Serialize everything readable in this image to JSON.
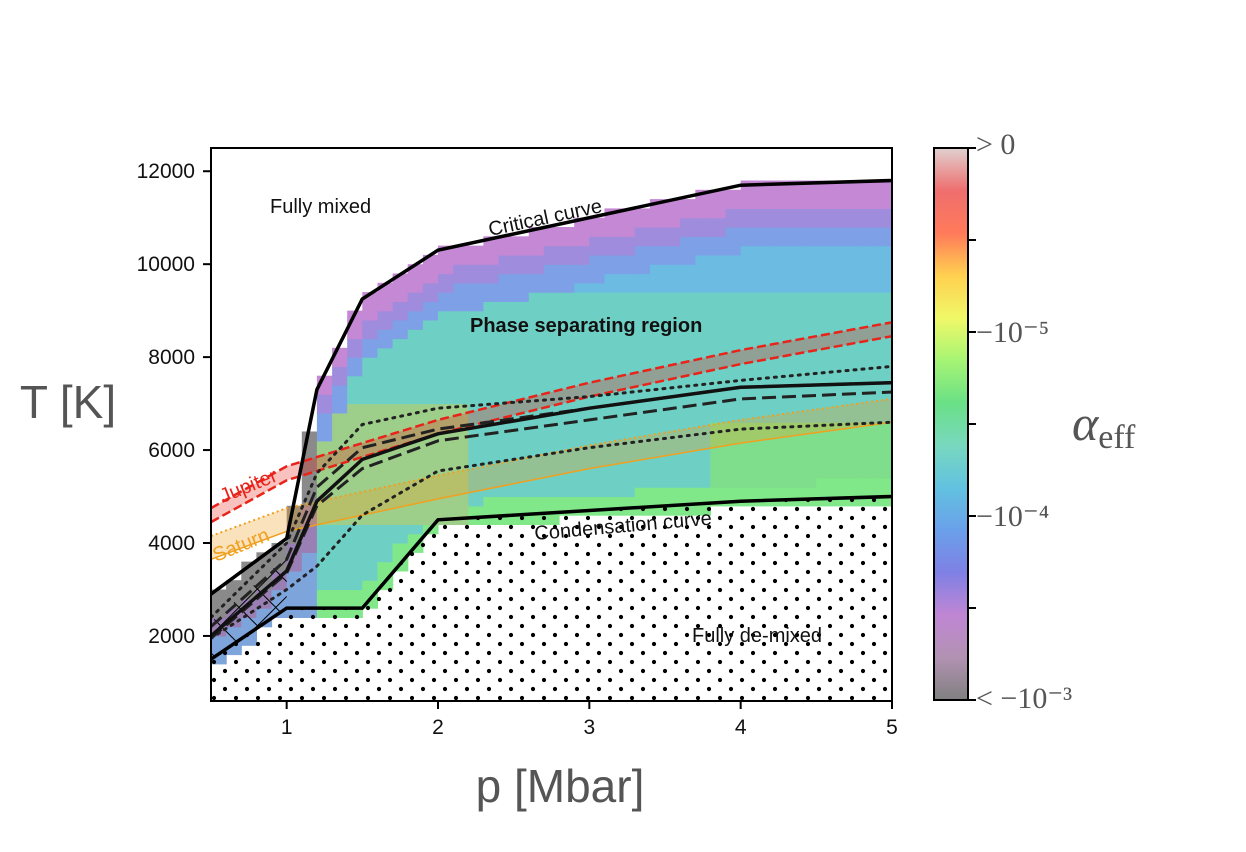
{
  "chart_data": {
    "type": "heatmap",
    "title": "",
    "xlabel": "p [Mbar]",
    "ylabel": "T [K]",
    "xlim": [
      0.5,
      5
    ],
    "ylim": [
      600,
      12500
    ],
    "x_ticks": [
      1,
      2,
      3,
      4,
      5
    ],
    "y_ticks": [
      2000,
      4000,
      6000,
      8000,
      10000,
      12000
    ],
    "colorbar": {
      "label": "α_eff",
      "label_symbol": "α",
      "label_sub": "eff",
      "tick_labels": [
        "> 0",
        "−10⁻⁵",
        "−10⁻⁴",
        "< −10⁻³"
      ],
      "colors": [
        "#e0d0d0",
        "#ef6e6e",
        "#ff7a5a",
        "#ffd050",
        "#f0f868",
        "#a6f474",
        "#6ae086",
        "#78d8be",
        "#62c2e0",
        "#6aa0ea",
        "#7e80e4",
        "#c086d4",
        "#b292b2",
        "#808080"
      ]
    },
    "critical_curve": {
      "name": "Critical curve",
      "x": [
        0.5,
        1.0,
        1.2,
        1.5,
        2.0,
        4.0,
        5.0
      ],
      "y": [
        2900,
        4100,
        7300,
        9250,
        10300,
        11700,
        11800
      ]
    },
    "condensation_curve": {
      "name": "Condensation curve",
      "x": [
        0.5,
        1.0,
        1.5,
        2.0,
        4.0,
        5.0
      ],
      "y": [
        1500,
        2600,
        2600,
        4500,
        4900,
        5000
      ]
    },
    "jupiter_adiabat": {
      "name": "Jupiter",
      "x": [
        0.5,
        1.0,
        2.0,
        3.0,
        4.0,
        5.0
      ],
      "y": [
        4600,
        5500,
        6500,
        7300,
        8000,
        8600
      ]
    },
    "saturn_adiabat": {
      "name": "Saturn",
      "x": [
        0.5,
        1.0,
        1.5,
        2.0,
        3.0,
        4.0,
        5.0
      ],
      "y": [
        3900,
        4500,
        4850,
        5200,
        5850,
        6400,
        6850
      ]
    },
    "black_solid_curve": {
      "x": [
        0.5,
        1.0,
        1.2,
        1.5,
        2.0,
        3.0,
        4.0,
        5.0
      ],
      "y": [
        2000,
        3400,
        4900,
        5800,
        6350,
        6900,
        7350,
        7450
      ]
    },
    "black_dashed_curves": [
      {
        "x": [
          0.5,
          1.0,
          1.2,
          1.5,
          2.0,
          3.0,
          4.0,
          5.0
        ],
        "y": [
          2200,
          3650,
          5200,
          6050,
          6450,
          6900,
          7350,
          7450
        ]
      },
      {
        "x": [
          0.5,
          1.0,
          1.2,
          1.5,
          2.0,
          3.0,
          4.0,
          5.0
        ],
        "y": [
          1950,
          3350,
          4800,
          5600,
          6200,
          6650,
          7100,
          7250
        ]
      }
    ],
    "black_dotted_curves": [
      {
        "x": [
          0.5,
          1.0,
          1.2,
          1.5,
          2.0,
          3.0,
          4.0,
          5.0
        ],
        "y": [
          2400,
          4000,
          5500,
          6550,
          6900,
          7150,
          7500,
          7800
        ]
      },
      {
        "x": [
          0.5,
          1.0,
          1.2,
          1.5,
          2.0,
          3.0,
          4.0,
          5.0
        ],
        "y": [
          1950,
          3000,
          3500,
          4600,
          5550,
          6050,
          6450,
          6600
        ]
      }
    ],
    "annotations": [
      "Fully mixed",
      "Critical curve",
      "Phase separating region",
      "Jupiter",
      "Saturn",
      "Condensation curve",
      "Fully de-mixed"
    ]
  },
  "colors": {
    "jupiter": "#e8241a",
    "saturn": "#f0a020",
    "curve": "#111111"
  }
}
